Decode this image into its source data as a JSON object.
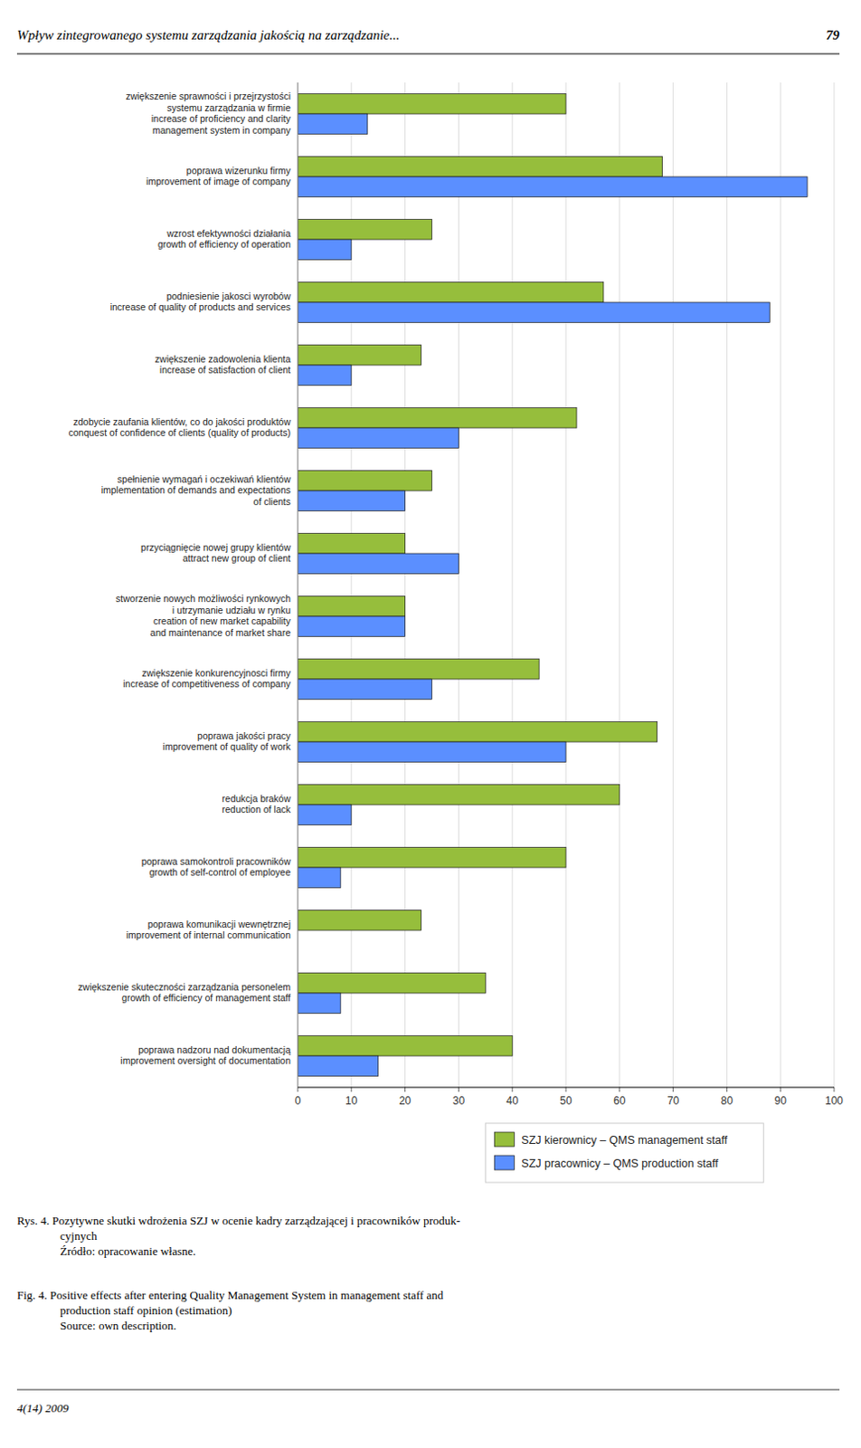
{
  "chart_data": {
    "type": "bar",
    "orientation": "horizontal",
    "title": "Wpływ zintegrowanego systemu zarządzania jakością na zarządzanie...",
    "categories": [
      "zwiększenie sprawności i przejrzystości\nsystemu zarządzania w firmie\nincrease of proficiency and clarity\nmanagement system in company",
      "poprawa wizerunku firmy\nimprovement of image of company",
      "wzrost efektywności działania\ngrowth of efficiency of operation",
      "podniesienie jakosci wyrobów\nincrease of quality of products and services",
      "zwiększenie zadowolenia klienta\nincrease of satisfaction of client",
      "zdobycie zaufania klientów, co do jakości produktów\nconquest of confidence of clients (quality of products)",
      "spełnienie wymagań i oczekiwań klientów\nimplementation of demands and expectations\nof clients",
      "przyciągnięcie nowej grupy klientów\nattract new group of client",
      "stworzenie nowych możliwości rynkowych\ni utrzymanie udziału w rynku\ncreation of new market capability\nand maintenance of market share",
      "zwiększenie konkurencyjnosci firmy\nincrease of competitiveness of company",
      "poprawa jakości pracy\nimprovement of quality of work",
      "redukcja braków\nreduction of lack",
      "poprawa samokontroli pracowników\ngrowth of self-control of employee",
      "poprawa komunikacji wewnętrznej\nimprovement of internal communication",
      "zwiększenie skuteczności zarządzania personelem\ngrowth of efficiency of management staff",
      "poprawa nadzoru nad dokumentacją\nimprovement oversight of documentation"
    ],
    "series": [
      {
        "name": "SZJ kierownicy – QMS management staff",
        "color": "#96be3c",
        "values": [
          50,
          68,
          25,
          57,
          23,
          52,
          25,
          20,
          20,
          45,
          67,
          60,
          50,
          23,
          35,
          40
        ]
      },
      {
        "name": "SZJ pracownicy – QMS production staff",
        "color": "#5b8fff",
        "values": [
          13,
          95,
          10,
          88,
          10,
          30,
          20,
          30,
          20,
          25,
          50,
          10,
          8,
          0,
          8,
          15
        ]
      }
    ],
    "xlim": [
      0,
      100
    ],
    "xticks": [
      0,
      10,
      20,
      30,
      40,
      50,
      60,
      70,
      80,
      90,
      100
    ],
    "grid": true,
    "legend": "bottom",
    "annotations": [
      "79",
      "Rys. 4. Pozytywne skutki wdrożenia SZJ w ocenie kadry zarządzającej i pracowników produk-\ncyjnych\nŹródło: opracowanie własne.",
      "Fig. 4.  Positive effects after entering Quality Management System in management staff and\nproduction staff opinion (estimation)\nSource: own description.",
      "4(14) 2009"
    ]
  }
}
